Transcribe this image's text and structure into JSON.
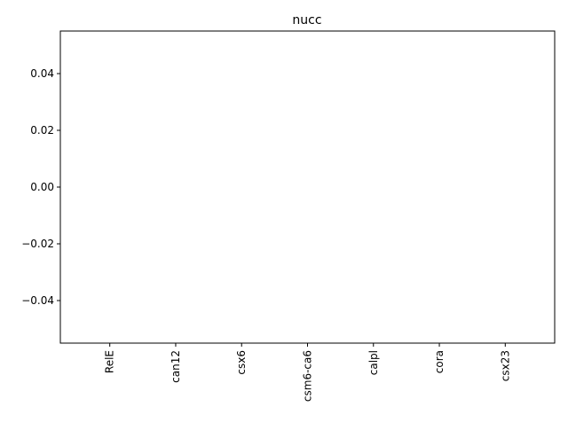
{
  "chart_data": {
    "type": "bar",
    "title": "nucc",
    "xlabel": "",
    "ylabel": "",
    "categories": [
      "RelE",
      "can12",
      "csx6",
      "csm6-ca6",
      "calpl",
      "cora",
      "csx23"
    ],
    "values": [
      0,
      0,
      0,
      0,
      0,
      0,
      0
    ],
    "ylim": [
      -0.055,
      0.055
    ],
    "yticks": [
      "0.04",
      "0.02",
      "0.00",
      "−0.02",
      "−0.04"
    ],
    "ytick_values": [
      0.04,
      0.02,
      0.0,
      -0.02,
      -0.04
    ],
    "grid": false,
    "legend": "none",
    "colors": {
      "axis": "#000000",
      "background": "#ffffff"
    }
  }
}
